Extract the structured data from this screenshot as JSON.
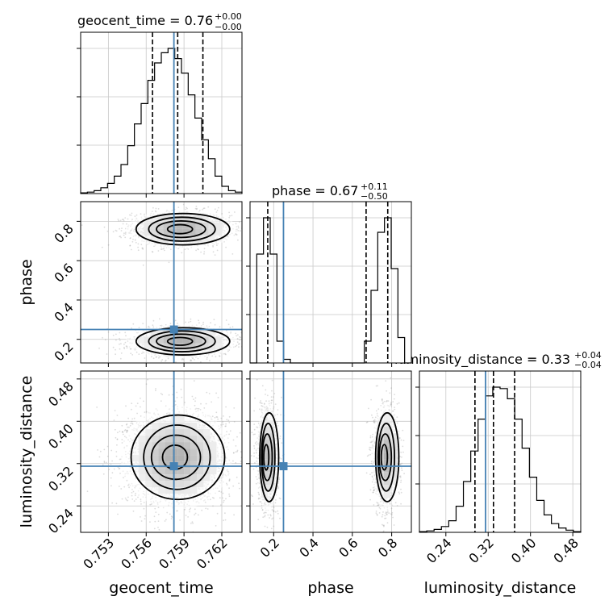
{
  "chart_data": {
    "type": "corner",
    "parameters": [
      "geocent_time",
      "phase",
      "luminosity_distance"
    ],
    "truths": {
      "geocent_time": 0.7582,
      "phase": 0.25,
      "luminosity_distance": 0.315
    },
    "truth_color": "#4682b4",
    "titles": [
      {
        "param": "geocent_time",
        "text": "geocent_time = 0.76",
        "sup": "+0.00",
        "sub": "−0.00"
      },
      {
        "param": "phase",
        "text": "phase = 0.67",
        "sup": "+0.11",
        "sub": "−0.50"
      },
      {
        "param": "luminosity_distance",
        "text": "luminosity_distance = 0.33",
        "sup": "+0.04",
        "sub": "−0.04"
      }
    ],
    "axes": {
      "geocent_time": {
        "range": [
          0.7508,
          0.7636
        ],
        "ticks": [
          0.753,
          0.756,
          0.759,
          0.762
        ],
        "tick_labels": [
          "0.753",
          "0.756",
          "0.759",
          "0.762"
        ]
      },
      "phase": {
        "range": [
          0.08,
          0.9
        ],
        "ticks": [
          0.2,
          0.4,
          0.6,
          0.8
        ],
        "tick_labels": [
          "0.2",
          "0.4",
          "0.6",
          "0.8"
        ]
      },
      "luminosity_distance": {
        "range": [
          0.19,
          0.495
        ],
        "ticks": [
          0.24,
          0.32,
          0.4,
          0.48
        ],
        "tick_labels": [
          "0.24",
          "0.32",
          "0.40",
          "0.48"
        ]
      }
    },
    "quantiles": {
      "geocent_time": [
        0.7565,
        0.7585,
        0.7605
      ],
      "phase": [
        0.17,
        0.67,
        0.78
      ],
      "luminosity_distance": [
        0.295,
        0.33,
        0.37
      ]
    },
    "histograms": {
      "geocent_time": [
        0.5,
        1,
        2,
        4,
        7,
        12,
        20,
        33,
        48,
        62,
        78,
        90,
        97,
        100,
        93,
        83,
        68,
        52,
        37,
        24,
        12,
        5,
        2,
        1
      ],
      "phase": [
        0,
        3,
        4,
        3,
        0.6,
        0.1,
        0,
        0,
        0,
        0,
        0,
        0,
        0,
        0,
        0,
        0,
        0,
        0.6,
        2,
        3.6,
        4,
        2.6,
        0.7,
        0
      ],
      "luminosity_distance": [
        0.5,
        1,
        2,
        4,
        8,
        18,
        35,
        56,
        78,
        94,
        100,
        99,
        92,
        78,
        58,
        38,
        22,
        12,
        6,
        3,
        1.5,
        0.5
      ]
    },
    "modes": {
      "geocent_time_vs_phase": [
        {
          "x": 0.7588,
          "y": 0.76,
          "sx": 0.0017,
          "sy": 0.038,
          "n": 1900
        },
        {
          "x": 0.7588,
          "y": 0.19,
          "sx": 0.0017,
          "sy": 0.033,
          "n": 1500
        }
      ],
      "geocent_time_vs_luminosity_distance": [
        {
          "x": 0.7584,
          "y": 0.332,
          "sx": 0.0017,
          "sy": 0.038,
          "n": 3400
        }
      ],
      "phase_vs_luminosity_distance": [
        {
          "x": 0.17,
          "y": 0.332,
          "sx": 0.022,
          "sy": 0.04,
          "n": 1700
        },
        {
          "x": 0.77,
          "y": 0.332,
          "sx": 0.027,
          "sy": 0.04,
          "n": 1700
        }
      ]
    },
    "grid": true,
    "legend": "none"
  }
}
